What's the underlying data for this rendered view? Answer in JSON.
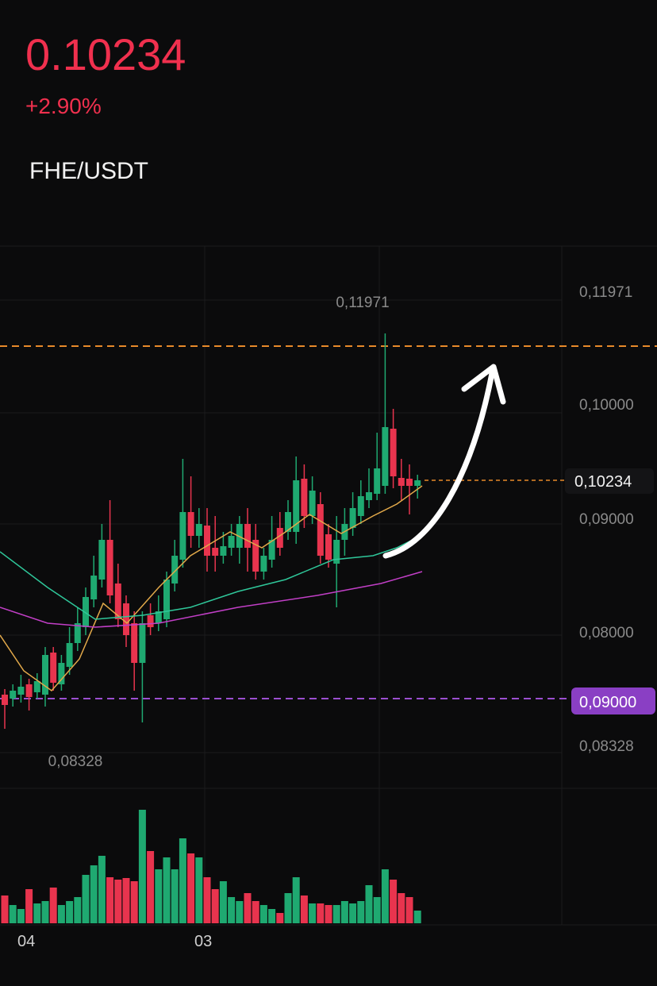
{
  "header": {
    "price": "0.10234",
    "change": "+2.90%",
    "pair": "FHE/USDT"
  },
  "chart": {
    "high_label": "0,11971",
    "low_label": "0,08328",
    "price_axis": [
      "0,11971",
      "0,10000",
      "0,10234",
      "0,09000",
      "0,08000",
      "0,09000",
      "0,08328"
    ],
    "time_axis": [
      "04",
      "03"
    ]
  }
}
